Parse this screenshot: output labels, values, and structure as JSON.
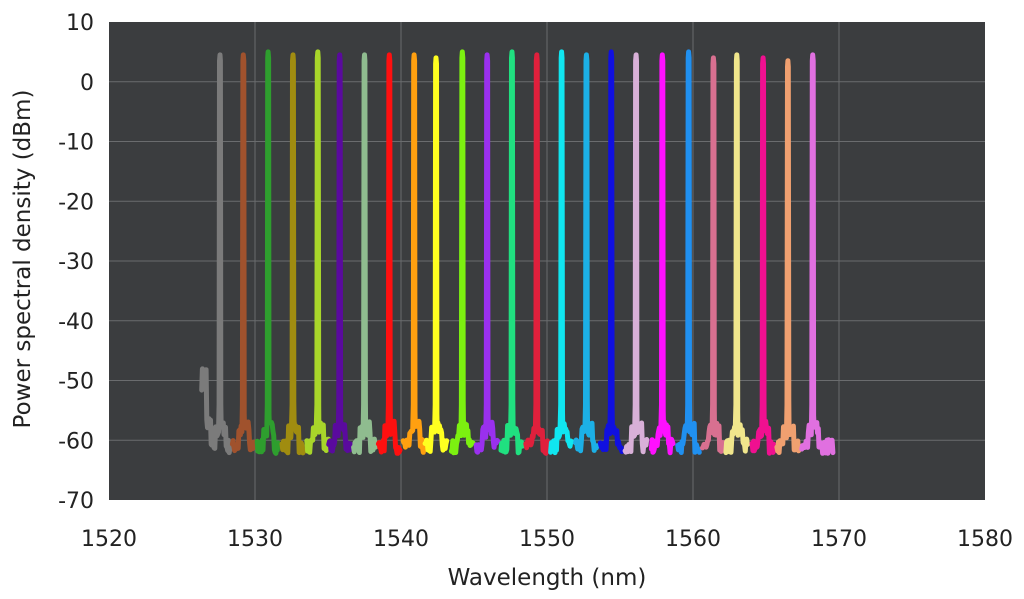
{
  "chart_data": {
    "type": "line",
    "title": "",
    "xlabel": "Wavelength (nm)",
    "ylabel": "Power spectral density (dBm)",
    "xlim": [
      1520,
      1580
    ],
    "ylim": [
      -70,
      10
    ],
    "xticks": [
      1520,
      1530,
      1540,
      1550,
      1560,
      1570,
      1580
    ],
    "yticks": [
      10,
      0,
      -10,
      -20,
      -30,
      -40,
      -50,
      -60,
      -70
    ],
    "grid": true,
    "background": "#3b3d3f",
    "grid_color": "#6a6c6e",
    "noise_floor_dbm": -61,
    "series": [
      {
        "peak_nm": 1527.6,
        "peak_dbm": 4.5,
        "color": "#7b7b7b"
      },
      {
        "peak_nm": 1529.2,
        "peak_dbm": 4.5,
        "color": "#a0522d"
      },
      {
        "peak_nm": 1530.9,
        "peak_dbm": 5.0,
        "color": "#2e9e2e"
      },
      {
        "peak_nm": 1532.6,
        "peak_dbm": 4.5,
        "color": "#a08c10"
      },
      {
        "peak_nm": 1534.3,
        "peak_dbm": 5.0,
        "color": "#a8d62a"
      },
      {
        "peak_nm": 1535.8,
        "peak_dbm": 4.5,
        "color": "#5a0a9e"
      },
      {
        "peak_nm": 1537.5,
        "peak_dbm": 4.5,
        "color": "#8fbc8f"
      },
      {
        "peak_nm": 1539.2,
        "peak_dbm": 4.5,
        "color": "#ff1010"
      },
      {
        "peak_nm": 1540.9,
        "peak_dbm": 4.5,
        "color": "#ffa010"
      },
      {
        "peak_nm": 1542.4,
        "peak_dbm": 4.0,
        "color": "#ffff20"
      },
      {
        "peak_nm": 1544.2,
        "peak_dbm": 5.0,
        "color": "#7cf010"
      },
      {
        "peak_nm": 1545.9,
        "peak_dbm": 4.5,
        "color": "#9a30ee"
      },
      {
        "peak_nm": 1547.6,
        "peak_dbm": 5.0,
        "color": "#20e080"
      },
      {
        "peak_nm": 1549.3,
        "peak_dbm": 4.5,
        "color": "#e0203c"
      },
      {
        "peak_nm": 1551.0,
        "peak_dbm": 5.0,
        "color": "#10e6f0"
      },
      {
        "peak_nm": 1552.7,
        "peak_dbm": 4.5,
        "color": "#1cb0e6"
      },
      {
        "peak_nm": 1554.4,
        "peak_dbm": 5.0,
        "color": "#1010e0"
      },
      {
        "peak_nm": 1556.1,
        "peak_dbm": 4.5,
        "color": "#d8b0d8"
      },
      {
        "peak_nm": 1557.9,
        "peak_dbm": 4.5,
        "color": "#ff10ff"
      },
      {
        "peak_nm": 1559.7,
        "peak_dbm": 5.0,
        "color": "#2090f0"
      },
      {
        "peak_nm": 1561.4,
        "peak_dbm": 4.0,
        "color": "#d87090"
      },
      {
        "peak_nm": 1563.0,
        "peak_dbm": 4.5,
        "color": "#f0e68c"
      },
      {
        "peak_nm": 1564.8,
        "peak_dbm": 4.0,
        "color": "#f01090"
      },
      {
        "peak_nm": 1566.5,
        "peak_dbm": 3.5,
        "color": "#f0a070"
      },
      {
        "peak_nm": 1568.2,
        "peak_dbm": 4.5,
        "color": "#e070e0"
      }
    ]
  }
}
